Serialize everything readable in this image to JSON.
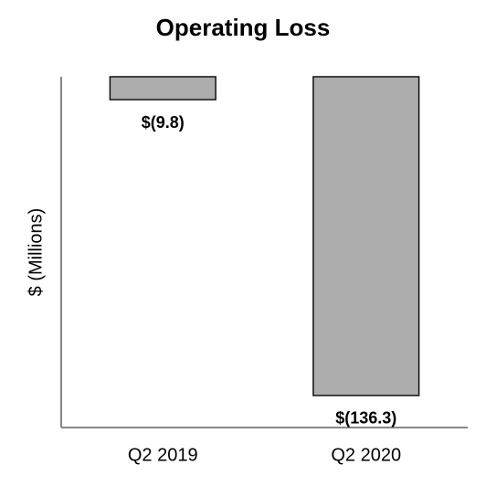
{
  "chart_data": {
    "type": "bar",
    "title": "Operating Loss",
    "ylabel": "$ (Millions)",
    "categories": [
      "Q2 2019",
      "Q2 2020"
    ],
    "values": [
      -9.8,
      -136.3
    ],
    "value_labels": [
      "$(9.8)",
      "$(136.3)"
    ],
    "color": "#adadad",
    "ylim": [
      -150,
      0
    ]
  }
}
